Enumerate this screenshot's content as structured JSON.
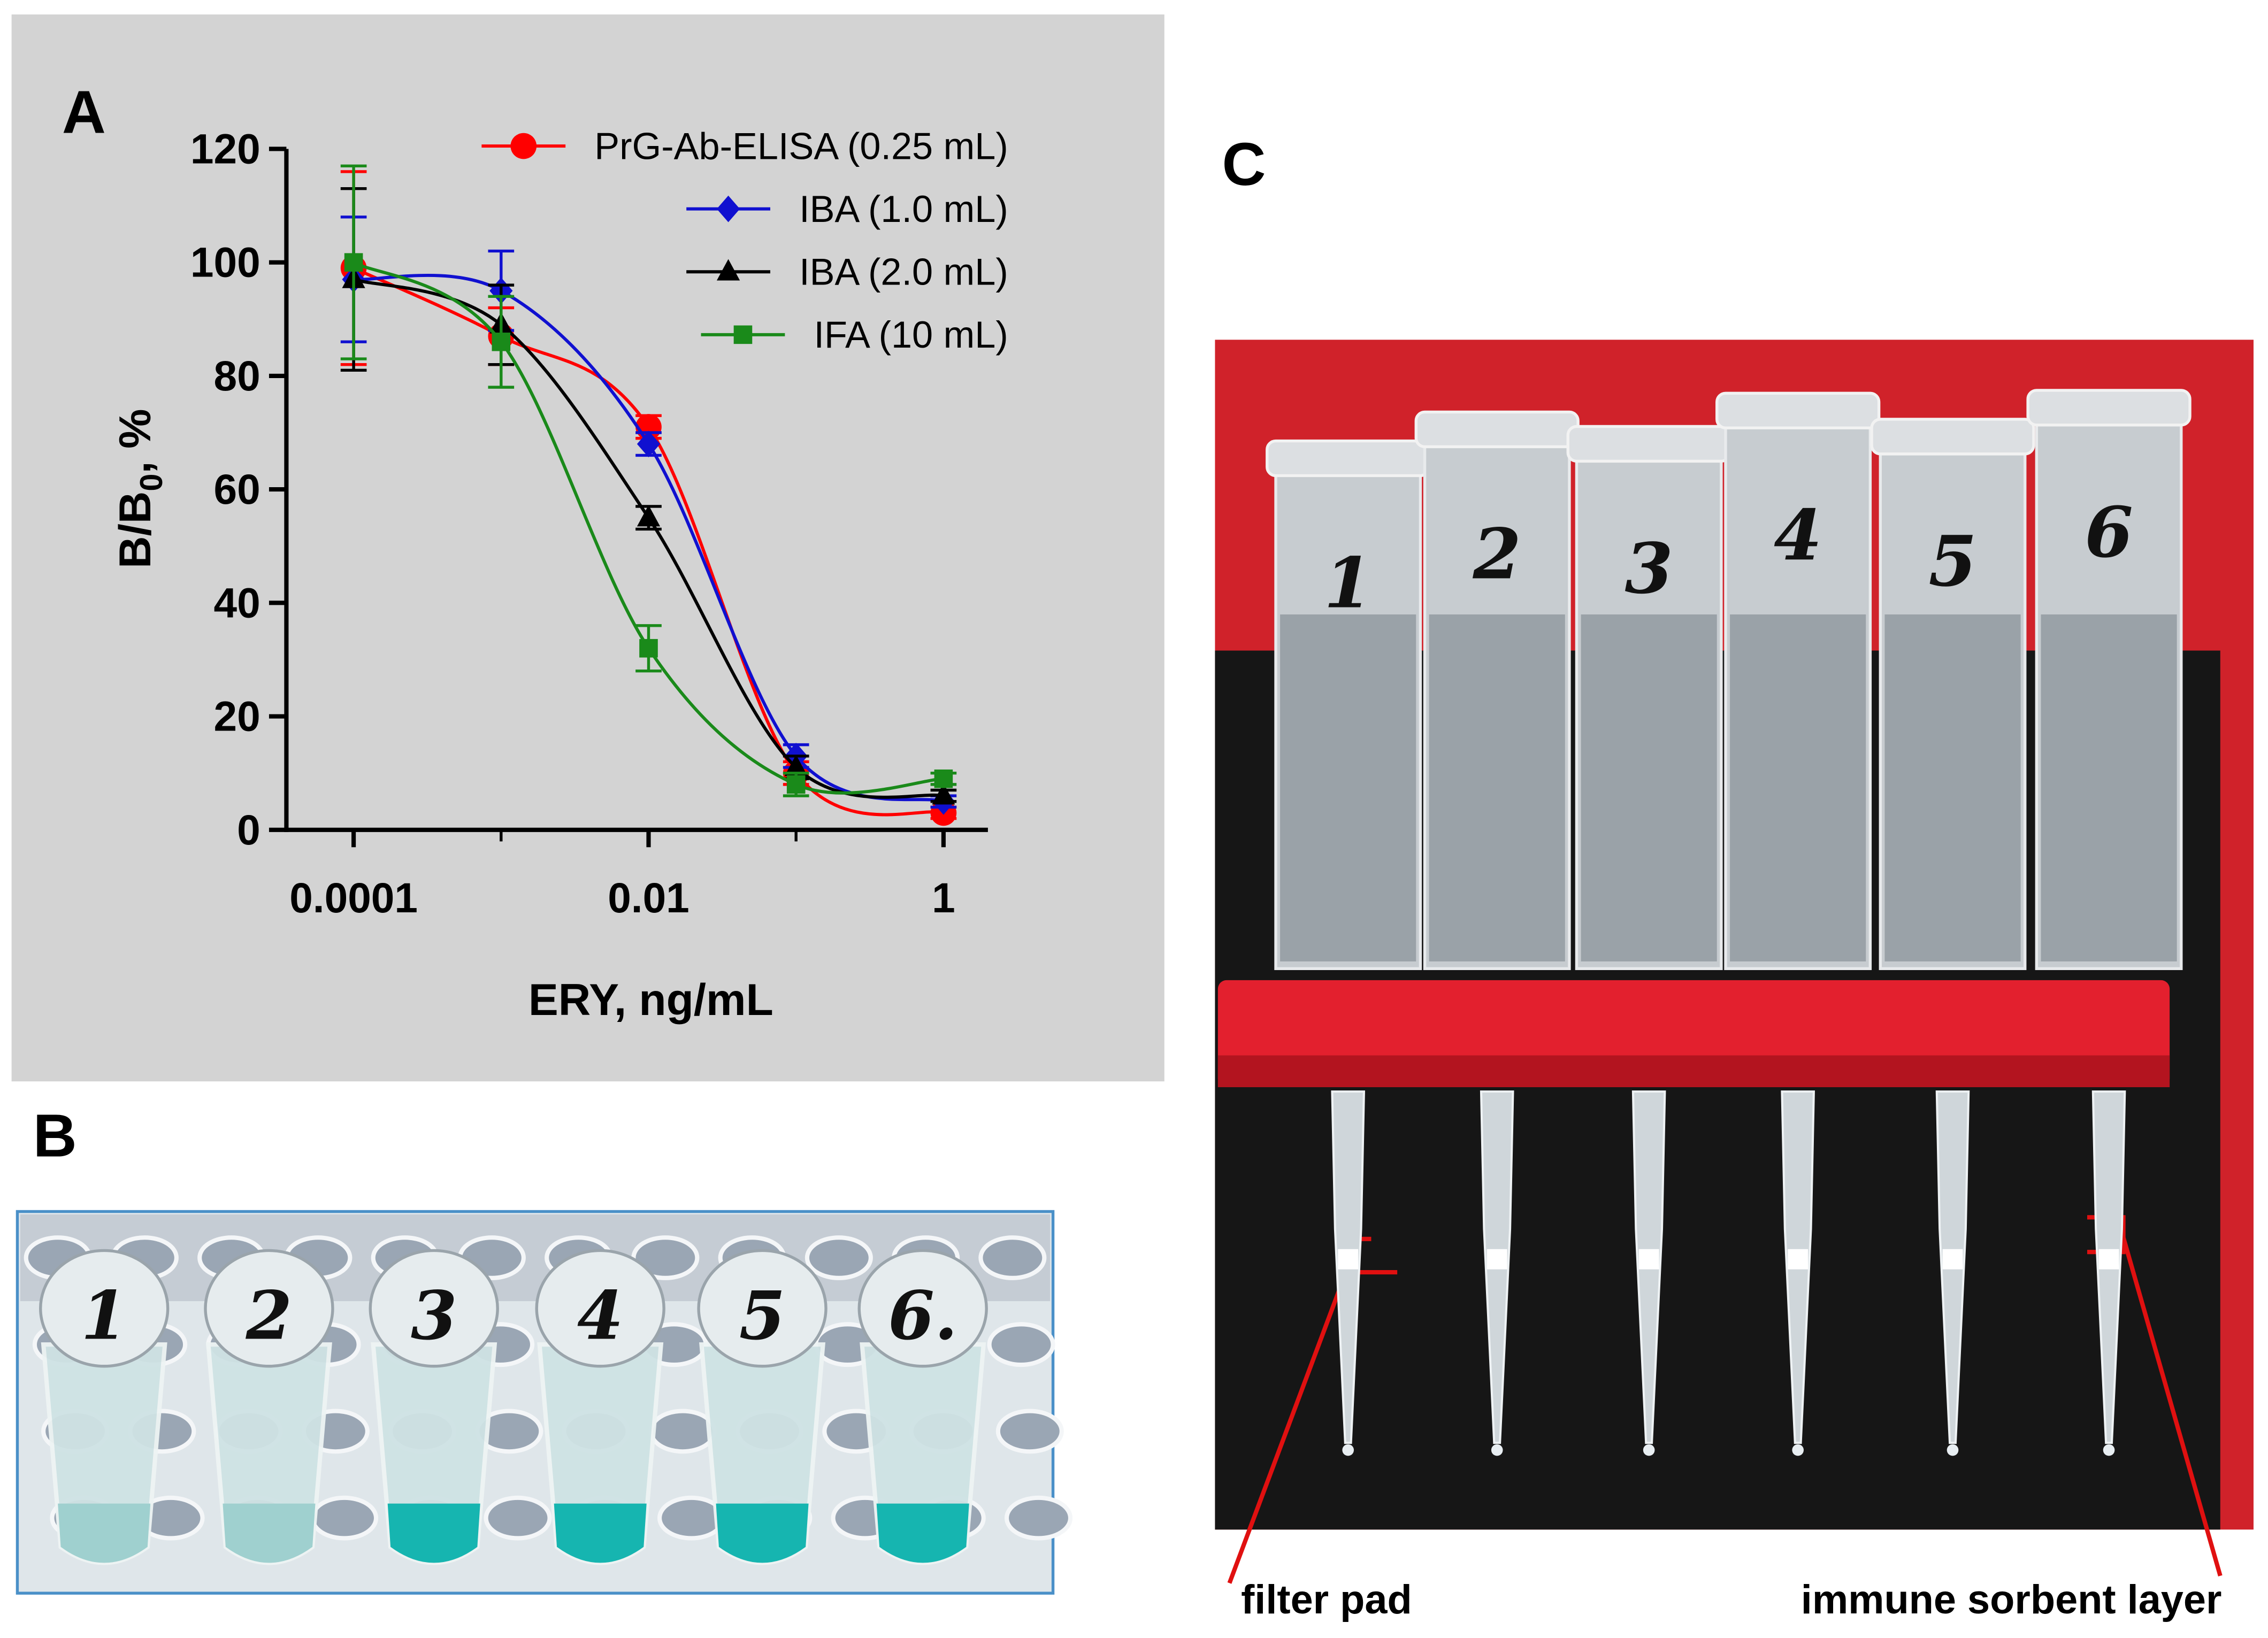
{
  "chart_data": {
    "type": "line",
    "panel_label": "A",
    "xlabel": "ERY, ng/mL",
    "ylabel": [
      "B/B",
      "0",
      ", %"
    ],
    "log_x": true,
    "x": [
      0.0001,
      0.001,
      0.01,
      0.1,
      1
    ],
    "xlim": [
      3.5e-05,
      2
    ],
    "xticks": [
      0.0001,
      0.01,
      1
    ],
    "ylim": [
      0,
      120
    ],
    "yticks": [
      0,
      20,
      40,
      60,
      80,
      100,
      120
    ],
    "legend": "upper right",
    "background": "#d3d3d3",
    "series": [
      {
        "name": "PrG-Ab-ELISA (0.25 mL)",
        "color": "#ff0000",
        "marker": "circle",
        "values": [
          99,
          87,
          71,
          10,
          3
        ],
        "errors": [
          17,
          5,
          2,
          2,
          1
        ]
      },
      {
        "name": "IBA (1.0 mL)",
        "color": "#1010d0",
        "marker": "diamond",
        "values": [
          97,
          95,
          68,
          13,
          5
        ],
        "errors": [
          11,
          7,
          2,
          2,
          1
        ]
      },
      {
        "name": "IBA (2.0 mL)",
        "color": "#000000",
        "marker": "triangle",
        "values": [
          97,
          89,
          55,
          11,
          6
        ],
        "errors": [
          16,
          7,
          2,
          2,
          1
        ]
      },
      {
        "name": "IFA (10 mL)",
        "color": "#1a8a1a",
        "marker": "square",
        "values": [
          100,
          86,
          32,
          8,
          9
        ],
        "errors": [
          17,
          8,
          4,
          2,
          1
        ]
      }
    ]
  },
  "panel_b": {
    "label": "B",
    "tube_labels": [
      "1",
      "2",
      "3",
      "4",
      "5",
      "6."
    ]
  },
  "panel_c": {
    "label": "C",
    "tube_labels": [
      "1",
      "2",
      "3",
      "4",
      "5",
      "6"
    ],
    "annotations": [
      "filter pad",
      "immune sorbent layer"
    ]
  }
}
